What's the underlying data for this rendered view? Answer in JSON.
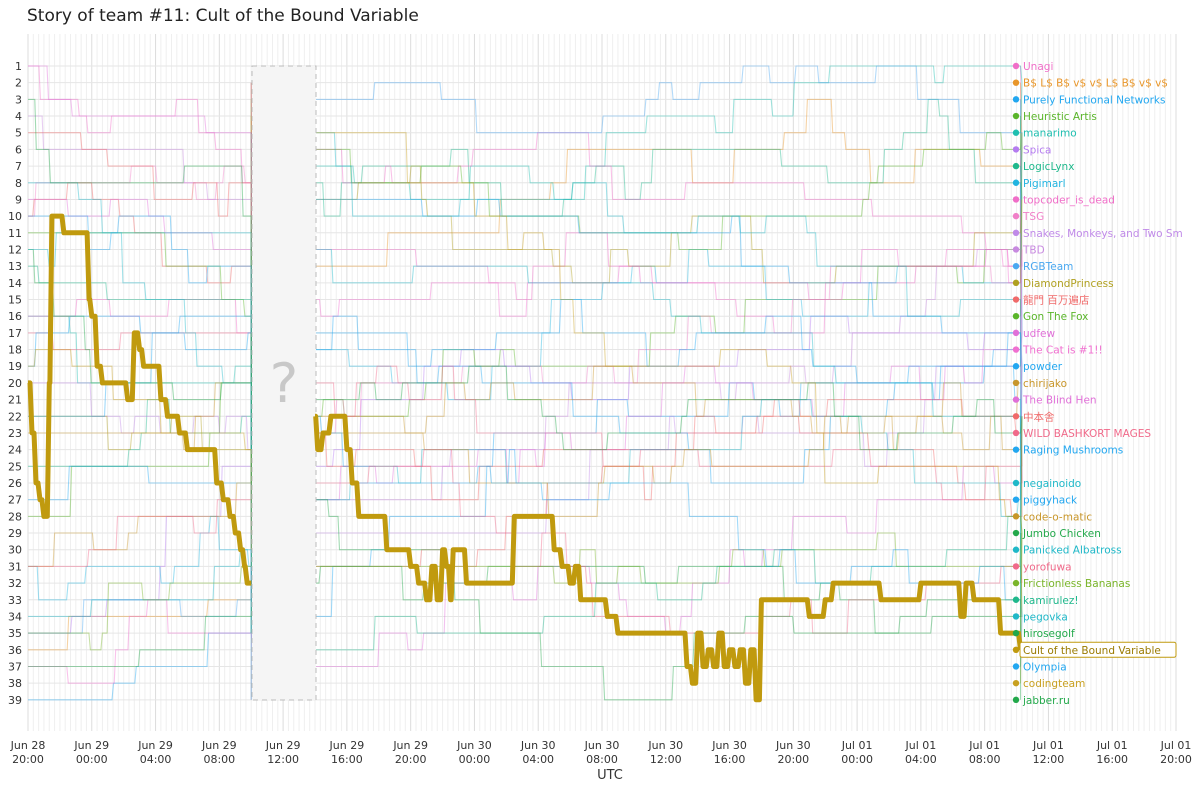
{
  "chart_data": {
    "type": "line",
    "title": "Story of team #11: Cult of the Bound Variable",
    "xlabel": "UTC",
    "ylabel": "",
    "ranks": [
      1,
      2,
      3,
      4,
      5,
      6,
      7,
      8,
      9,
      10,
      11,
      12,
      13,
      14,
      15,
      16,
      17,
      18,
      19,
      20,
      21,
      22,
      23,
      24,
      25,
      26,
      27,
      28,
      29,
      30,
      31,
      32,
      33,
      34,
      35,
      36,
      37,
      38,
      39
    ],
    "x_ticks": [
      {
        "date": "Jun 28",
        "time": "20:00"
      },
      {
        "date": "Jun 29",
        "time": "00:00"
      },
      {
        "date": "Jun 29",
        "time": "04:00"
      },
      {
        "date": "Jun 29",
        "time": "08:00"
      },
      {
        "date": "Jun 29",
        "time": "12:00"
      },
      {
        "date": "Jun 29",
        "time": "16:00"
      },
      {
        "date": "Jun 29",
        "time": "20:00"
      },
      {
        "date": "Jun 30",
        "time": "00:00"
      },
      {
        "date": "Jun 30",
        "time": "04:00"
      },
      {
        "date": "Jun 30",
        "time": "08:00"
      },
      {
        "date": "Jun 30",
        "time": "12:00"
      },
      {
        "date": "Jun 30",
        "time": "16:00"
      },
      {
        "date": "Jun 30",
        "time": "20:00"
      },
      {
        "date": "Jul 01",
        "time": "00:00"
      },
      {
        "date": "Jul 01",
        "time": "04:00"
      },
      {
        "date": "Jul 01",
        "time": "08:00"
      },
      {
        "date": "Jul 01",
        "time": "12:00"
      },
      {
        "date": "Jul 01",
        "time": "16:00"
      },
      {
        "date": "Jul 01",
        "time": "20:00"
      }
    ],
    "x_range": [
      "2014-06-28 20:00",
      "2014-07-01 20:00"
    ],
    "gap": {
      "from": "Jun 29 10:00",
      "to": "Jun 29 14:00",
      "mark": "?"
    },
    "highlight_color": "#c09a0e",
    "final_standings": [
      {
        "rank": 1,
        "team": "Unagi",
        "color": "#f06ec8"
      },
      {
        "rank": 2,
        "team": "B$ L$ B$ v$ v$ L$ B$ v$ v$",
        "color": "#e8962a"
      },
      {
        "rank": 3,
        "team": "Purely Functional Networks",
        "color": "#22a7f0"
      },
      {
        "rank": 4,
        "team": "Heuristic Artis",
        "color": "#5ab52a"
      },
      {
        "rank": 5,
        "team": "manarimo",
        "color": "#1fbfb0"
      },
      {
        "rank": 6,
        "team": "Spica",
        "color": "#b57cf0"
      },
      {
        "rank": 7,
        "team": "LogicLynx",
        "color": "#1fb88c"
      },
      {
        "rank": 8,
        "team": "Pigimarl",
        "color": "#22b4e0"
      },
      {
        "rank": 9,
        "team": "topcoder_is_dead",
        "color": "#f06ec8"
      },
      {
        "rank": 10,
        "team": "TSG",
        "color": "#f080c8"
      },
      {
        "rank": 11,
        "team": "Snakes, Monkeys, and Two Sm",
        "color": "#c08ae8"
      },
      {
        "rank": 12,
        "team": "TBD",
        "color": "#c88ae0"
      },
      {
        "rank": 13,
        "team": "RGBTeam",
        "color": "#4aa8f0"
      },
      {
        "rank": 14,
        "team": "DiamondPrincess",
        "color": "#b0a020"
      },
      {
        "rank": 15,
        "team": "龍門 百万遍店",
        "color": "#f06a6a"
      },
      {
        "rank": 16,
        "team": "Gon The Fox",
        "color": "#5ab52a"
      },
      {
        "rank": 17,
        "team": "udfew",
        "color": "#e070d8"
      },
      {
        "rank": 18,
        "team": "The Cat is #1!!",
        "color": "#f070d0"
      },
      {
        "rank": 19,
        "team": "powder",
        "color": "#22a7f0"
      },
      {
        "rank": 20,
        "team": "chirijako",
        "color": "#c8962a"
      },
      {
        "rank": 21,
        "team": "The Blind Hen",
        "color": "#e070d8"
      },
      {
        "rank": 22,
        "team": "中本舎",
        "color": "#f06a6a"
      },
      {
        "rank": 23,
        "team": "WILD BASHKORT MAGES",
        "color": "#f06a8a"
      },
      {
        "rank": 24,
        "team": "Raging Mushrooms",
        "color": "#22a7f0"
      },
      {
        "rank": 25,
        "team": "",
        "color": "#cccccc"
      },
      {
        "rank": 26,
        "team": "negainoido",
        "color": "#1fb8c8"
      },
      {
        "rank": 27,
        "team": "piggyhack",
        "color": "#22a7f0"
      },
      {
        "rank": 28,
        "team": "code-o-matic",
        "color": "#c8962a"
      },
      {
        "rank": 29,
        "team": "Jumbo Chicken",
        "color": "#22a84a"
      },
      {
        "rank": 30,
        "team": "Panicked Albatross",
        "color": "#1fb8c8"
      },
      {
        "rank": 31,
        "team": "yorofuwa",
        "color": "#f06a8a"
      },
      {
        "rank": 32,
        "team": "Frictionless Bananas",
        "color": "#7ab52a"
      },
      {
        "rank": 33,
        "team": "kamirulez!",
        "color": "#1fb88c"
      },
      {
        "rank": 34,
        "team": "pegovka",
        "color": "#1fb8c8"
      },
      {
        "rank": 35,
        "team": "hirosegolf",
        "color": "#22a84a"
      },
      {
        "rank": 36,
        "team": "Cult of the Bound Variable",
        "color": "#c09a0e",
        "highlight": true
      },
      {
        "rank": 37,
        "team": "Olympia",
        "color": "#22a7f0"
      },
      {
        "rank": 38,
        "team": "codingteam",
        "color": "#c8a020"
      },
      {
        "rank": 39,
        "team": "jabber.ru",
        "color": "#22a84a"
      }
    ],
    "series": [
      {
        "name": "Cult of the Bound Variable",
        "points": [
          [
            "Jun 28 20:00",
            20
          ],
          [
            "Jun 28 20:15",
            23
          ],
          [
            "Jun 28 20:30",
            26
          ],
          [
            "Jun 28 20:45",
            27
          ],
          [
            "Jun 28 21:00",
            28
          ],
          [
            "Jun 28 21:20",
            20
          ],
          [
            "Jun 28 21:30",
            10
          ],
          [
            "Jun 28 22:00",
            10
          ],
          [
            "Jun 28 22:15",
            11
          ],
          [
            "Jun 28 23:30",
            11
          ],
          [
            "Jun 28 23:50",
            15
          ],
          [
            "Jun 29 00:00",
            16
          ],
          [
            "Jun 29 00:20",
            19
          ],
          [
            "Jun 29 00:40",
            20
          ],
          [
            "Jun 29 02:00",
            20
          ],
          [
            "Jun 29 02:15",
            21
          ],
          [
            "Jun 29 02:40",
            17
          ],
          [
            "Jun 29 03:00",
            18
          ],
          [
            "Jun 29 03:15",
            19
          ],
          [
            "Jun 29 04:00",
            19
          ],
          [
            "Jun 29 04:20",
            21
          ],
          [
            "Jun 29 04:45",
            22
          ],
          [
            "Jun 29 05:30",
            23
          ],
          [
            "Jun 29 06:00",
            24
          ],
          [
            "Jun 29 07:30",
            24
          ],
          [
            "Jun 29 07:50",
            26
          ],
          [
            "Jun 29 08:15",
            27
          ],
          [
            "Jun 29 08:40",
            28
          ],
          [
            "Jun 29 09:00",
            29
          ],
          [
            "Jun 29 09:20",
            30
          ],
          [
            "Jun 29 09:35",
            31
          ],
          [
            "Jun 29 09:45",
            32
          ],
          [
            "Jun 29 10:00",
            32
          ],
          [
            "Jun 29 14:00",
            22
          ],
          [
            "Jun 29 14:10",
            24
          ],
          [
            "Jun 29 14:30",
            23
          ],
          [
            "Jun 29 15:00",
            22
          ],
          [
            "Jun 29 15:45",
            22
          ],
          [
            "Jun 29 16:00",
            24
          ],
          [
            "Jun 29 16:20",
            26
          ],
          [
            "Jun 29 16:45",
            28
          ],
          [
            "Jun 29 18:00",
            28
          ],
          [
            "Jun 29 18:30",
            30
          ],
          [
            "Jun 29 19:40",
            30
          ],
          [
            "Jun 29 20:00",
            31
          ],
          [
            "Jun 29 20:30",
            32
          ],
          [
            "Jun 29 21:00",
            33
          ],
          [
            "Jun 29 21:20",
            31
          ],
          [
            "Jun 29 21:40",
            33
          ],
          [
            "Jun 29 22:00",
            30
          ],
          [
            "Jun 29 22:15",
            31
          ],
          [
            "Jun 29 22:30",
            33
          ],
          [
            "Jun 29 22:40",
            30
          ],
          [
            "Jun 29 23:15",
            30
          ],
          [
            "Jun 29 23:30",
            32
          ],
          [
            "Jun 30 02:00",
            32
          ],
          [
            "Jun 30 02:30",
            28
          ],
          [
            "Jun 30 04:30",
            28
          ],
          [
            "Jun 30 05:00",
            30
          ],
          [
            "Jun 30 05:30",
            31
          ],
          [
            "Jun 30 06:00",
            32
          ],
          [
            "Jun 30 06:20",
            31
          ],
          [
            "Jun 30 06:40",
            33
          ],
          [
            "Jun 30 08:00",
            33
          ],
          [
            "Jun 30 08:20",
            34
          ],
          [
            "Jun 30 09:00",
            35
          ],
          [
            "Jun 30 13:00",
            35
          ],
          [
            "Jun 30 13:20",
            37
          ],
          [
            "Jun 30 13:40",
            38
          ],
          [
            "Jun 30 14:00",
            35
          ],
          [
            "Jun 30 14:20",
            37
          ],
          [
            "Jun 30 14:40",
            36
          ],
          [
            "Jun 30 15:00",
            37
          ],
          [
            "Jun 30 15:20",
            35
          ],
          [
            "Jun 30 15:40",
            37
          ],
          [
            "Jun 30 16:00",
            36
          ],
          [
            "Jun 30 16:20",
            37
          ],
          [
            "Jun 30 16:40",
            36
          ],
          [
            "Jun 30 17:00",
            38
          ],
          [
            "Jun 30 17:20",
            36
          ],
          [
            "Jun 30 17:40",
            39
          ],
          [
            "Jun 30 18:00",
            33
          ],
          [
            "Jun 30 20:40",
            33
          ],
          [
            "Jun 30 21:00",
            34
          ],
          [
            "Jun 30 21:30",
            34
          ],
          [
            "Jun 30 22:00",
            33
          ],
          [
            "Jun 30 22:30",
            32
          ],
          [
            "Jul 01 01:00",
            32
          ],
          [
            "Jul 01 01:30",
            33
          ],
          [
            "Jul 01 03:40",
            33
          ],
          [
            "Jul 01 04:00",
            32
          ],
          [
            "Jul 01 06:00",
            32
          ],
          [
            "Jul 01 06:30",
            34
          ],
          [
            "Jul 01 06:50",
            32
          ],
          [
            "Jul 01 07:20",
            33
          ],
          [
            "Jul 01 08:30",
            33
          ],
          [
            "Jul 01 09:00",
            35
          ],
          [
            "Jul 01 10:00",
            35
          ],
          [
            "Jul 01 10:15",
            36
          ]
        ]
      }
    ]
  }
}
